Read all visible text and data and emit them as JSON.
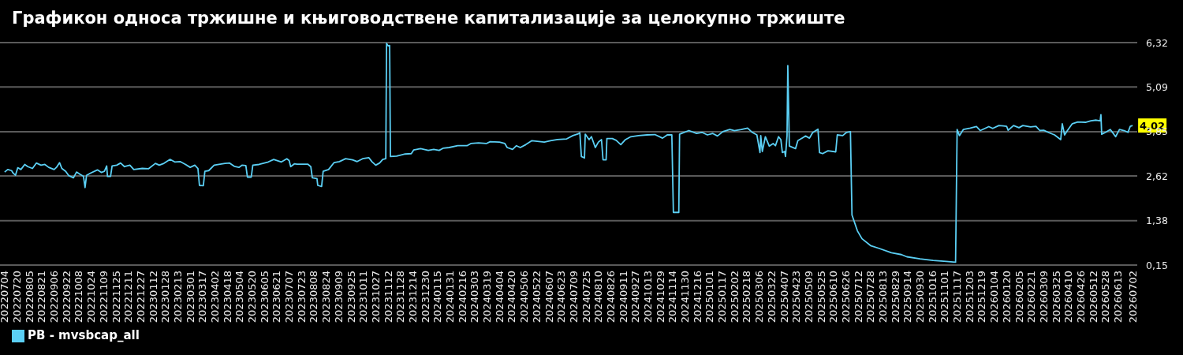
{
  "chart_data": {
    "type": "line",
    "title": "Графикон односа тржишне и књиговодствене капитализације за целокупно тржиште",
    "x": [
      "2022-07-04",
      "2022-07-08",
      "2022-07-13",
      "2022-07-15",
      "2022-07-18",
      "2022-07-21",
      "2022-07-25",
      "2022-07-30",
      "2022-08-03",
      "2022-08-09",
      "2022-08-14",
      "2022-08-20",
      "2022-08-25",
      "2022-08-30",
      "2022-09-06",
      "2022-09-09",
      "2022-09-13",
      "2022-09-16",
      "2022-09-21",
      "2022-09-25",
      "2022-10-01",
      "2022-10-05",
      "2022-10-10",
      "2022-10-14",
      "2022-10-16",
      "2022-10-18",
      "2022-10-23",
      "2022-11-01",
      "2022-11-06",
      "2022-11-10",
      "2022-11-13",
      "2022-11-14",
      "2022-11-18",
      "2022-11-20",
      "2022-11-26",
      "2022-12-01",
      "2022-12-06",
      "2022-12-13",
      "2022-12-18",
      "2022-12-29",
      "2023-01-06",
      "2023-01-15",
      "2023-01-20",
      "2023-01-26",
      "2023-02-03",
      "2023-02-09",
      "2023-02-16",
      "2023-02-23",
      "2023-03-01",
      "2023-03-07",
      "2023-03-11",
      "2023-03-13",
      "2023-03-18",
      "2023-03-20",
      "2023-03-25",
      "2023-04-01",
      "2023-04-15",
      "2023-04-21",
      "2023-04-27",
      "2023-05-03",
      "2023-05-07",
      "2023-05-12",
      "2023-05-14",
      "2023-05-19",
      "2023-05-21",
      "2023-05-29",
      "2023-06-03",
      "2023-06-10",
      "2023-06-17",
      "2023-06-27",
      "2023-07-04",
      "2023-07-07",
      "2023-07-09",
      "2023-07-14",
      "2023-07-17",
      "2023-07-31",
      "2023-08-04",
      "2023-08-06",
      "2023-08-12",
      "2023-08-13",
      "2023-08-18",
      "2023-08-20",
      "2023-08-27",
      "2023-09-03",
      "2023-09-10",
      "2023-09-18",
      "2023-09-27",
      "2023-10-03",
      "2023-10-10",
      "2023-10-18",
      "2023-10-22",
      "2023-10-27",
      "2023-11-01",
      "2023-11-05",
      "2023-11-09",
      "2023-11-10",
      "2023-11-12",
      "2023-11-14",
      "2023-11-15",
      "2023-11-23",
      "2023-12-04",
      "2023-12-12",
      "2023-12-15",
      "2023-12-24",
      "2024-01-03",
      "2024-01-10",
      "2024-01-17",
      "2024-01-22",
      "2024-01-30",
      "2024-02-10",
      "2024-02-22",
      "2024-02-27",
      "2024-03-08",
      "2024-03-18",
      "2024-03-23",
      "2024-04-04",
      "2024-04-11",
      "2024-04-14",
      "2024-04-21",
      "2024-04-26",
      "2024-05-01",
      "2024-05-08",
      "2024-05-16",
      "2024-06-01",
      "2024-06-09",
      "2024-06-18",
      "2024-06-30",
      "2024-07-08",
      "2024-07-15",
      "2024-07-17",
      "2024-07-19",
      "2024-07-23",
      "2024-07-24",
      "2024-07-29",
      "2024-08-01",
      "2024-08-06",
      "2024-08-10",
      "2024-08-14",
      "2024-08-16",
      "2024-08-20",
      "2024-08-21",
      "2024-08-28",
      "2024-09-02",
      "2024-09-08",
      "2024-09-14",
      "2024-09-21",
      "2024-10-01",
      "2024-10-12",
      "2024-10-22",
      "2024-11-01",
      "2024-11-07",
      "2024-11-13",
      "2024-11-15",
      "2024-11-22",
      "2024-11-23",
      "2024-12-05",
      "2024-12-15",
      "2024-12-22",
      "2024-12-29",
      "2025-01-05",
      "2025-01-11",
      "2025-01-18",
      "2025-01-27",
      "2025-02-02",
      "2025-02-11",
      "2025-02-19",
      "2025-02-25",
      "2025-03-03",
      "2025-03-07",
      "2025-03-08",
      "2025-03-10",
      "2025-03-14",
      "2025-03-19",
      "2025-03-24",
      "2025-03-27",
      "2025-03-31",
      "2025-04-03",
      "2025-04-05",
      "2025-04-08",
      "2025-04-09",
      "2025-04-11",
      "2025-04-12",
      "2025-04-14",
      "2025-04-22",
      "2025-04-25",
      "2025-05-05",
      "2025-05-10",
      "2025-05-14",
      "2025-05-21",
      "2025-05-23",
      "2025-05-27",
      "2025-06-03",
      "2025-06-13",
      "2025-06-15",
      "2025-06-22",
      "2025-06-27",
      "2025-07-02",
      "2025-07-04",
      "2025-07-11",
      "2025-07-17",
      "2025-07-28",
      "2025-08-07",
      "2025-08-24",
      "2025-09-06",
      "2025-09-13",
      "2025-09-30",
      "2025-10-17",
      "2025-11-03",
      "2025-11-15",
      "2025-11-17",
      "2025-11-20",
      "2025-11-25",
      "2025-12-04",
      "2025-12-12",
      "2025-12-17",
      "2025-12-28",
      "2026-01-02",
      "2026-01-10",
      "2026-01-20",
      "2026-01-22",
      "2026-01-29",
      "2026-02-05",
      "2026-02-10",
      "2026-02-20",
      "2026-02-27",
      "2026-03-04",
      "2026-03-09",
      "2026-03-16",
      "2026-03-23",
      "2026-03-26",
      "2026-03-31",
      "2026-04-02",
      "2026-04-05",
      "2026-04-09",
      "2026-04-15",
      "2026-04-22",
      "2026-05-02",
      "2026-05-09",
      "2026-05-16",
      "2026-05-21",
      "2026-05-22",
      "2026-05-23",
      "2026-05-28",
      "2026-06-03",
      "2026-06-07",
      "2026-06-10",
      "2026-06-15",
      "2026-06-21",
      "2026-06-26",
      "2026-06-29",
      "2026-07-02"
    ],
    "series": [
      {
        "name": "PB - mvsbcap_all",
        "color": "#5bcff4",
        "values": [
          2.73,
          2.8,
          2.77,
          2.7,
          2.64,
          2.85,
          2.8,
          2.94,
          2.88,
          2.83,
          2.98,
          2.92,
          2.94,
          2.86,
          2.8,
          2.86,
          2.99,
          2.83,
          2.75,
          2.63,
          2.57,
          2.73,
          2.66,
          2.61,
          2.3,
          2.64,
          2.7,
          2.79,
          2.72,
          2.75,
          2.9,
          2.61,
          2.61,
          2.9,
          2.92,
          2.98,
          2.88,
          2.92,
          2.8,
          2.83,
          2.82,
          2.97,
          2.92,
          2.97,
          3.08,
          3.01,
          3.02,
          2.94,
          2.86,
          2.92,
          2.83,
          2.36,
          2.35,
          2.75,
          2.77,
          2.92,
          2.97,
          2.98,
          2.89,
          2.86,
          2.92,
          2.91,
          2.59,
          2.59,
          2.92,
          2.94,
          2.97,
          3.01,
          3.08,
          3.01,
          3.1,
          3.05,
          2.88,
          2.96,
          2.95,
          2.95,
          2.88,
          2.57,
          2.55,
          2.36,
          2.33,
          2.75,
          2.8,
          2.99,
          3.02,
          3.1,
          3.07,
          3.02,
          3.1,
          3.13,
          3.02,
          2.92,
          2.98,
          3.08,
          3.1,
          6.3,
          6.23,
          6.24,
          3.16,
          3.17,
          3.23,
          3.24,
          3.34,
          3.38,
          3.33,
          3.36,
          3.33,
          3.39,
          3.41,
          3.46,
          3.46,
          3.52,
          3.54,
          3.52,
          3.57,
          3.56,
          3.52,
          3.41,
          3.36,
          3.46,
          3.41,
          3.49,
          3.6,
          3.56,
          3.6,
          3.63,
          3.65,
          3.74,
          3.79,
          3.82,
          3.16,
          3.12,
          3.78,
          3.63,
          3.71,
          3.41,
          3.56,
          3.63,
          3.07,
          3.07,
          3.66,
          3.66,
          3.61,
          3.49,
          3.63,
          3.71,
          3.74,
          3.76,
          3.77,
          3.67,
          3.76,
          3.76,
          1.61,
          1.61,
          3.78,
          3.88,
          3.8,
          3.83,
          3.76,
          3.8,
          3.73,
          3.85,
          3.91,
          3.88,
          3.91,
          3.95,
          3.83,
          3.76,
          3.27,
          3.74,
          3.3,
          3.71,
          3.45,
          3.52,
          3.46,
          3.71,
          3.63,
          3.27,
          3.3,
          3.16,
          3.74,
          5.68,
          3.45,
          3.38,
          3.6,
          3.73,
          3.67,
          3.82,
          3.92,
          3.27,
          3.24,
          3.32,
          3.29,
          3.76,
          3.74,
          3.83,
          3.85,
          1.54,
          1.1,
          0.88,
          0.69,
          0.62,
          0.49,
          0.44,
          0.38,
          0.32,
          0.28,
          0.25,
          0.23,
          3.91,
          3.74,
          3.91,
          3.95,
          3.99,
          3.88,
          3.99,
          3.94,
          4.02,
          4.0,
          3.89,
          4.02,
          3.96,
          4.02,
          3.98,
          4.0,
          3.88,
          3.89,
          3.82,
          3.76,
          3.71,
          3.63,
          4.07,
          3.76,
          3.89,
          4.07,
          4.12,
          4.11,
          4.15,
          4.17,
          4.15,
          4.32,
          3.78,
          3.83,
          3.91,
          3.8,
          3.71,
          3.91,
          3.88,
          3.83,
          4.0,
          4.02
        ]
      }
    ],
    "xlim": [
      "2022-06-28",
      "2026-07-08"
    ],
    "xticks": [
      {
        "value": "2022-07-04",
        "label": "20220704"
      },
      {
        "value": "2022-07-20",
        "label": "20220720"
      },
      {
        "value": "2022-08-05",
        "label": "20220805"
      },
      {
        "value": "2022-08-21",
        "label": "20220821"
      },
      {
        "value": "2022-09-06",
        "label": "20220906"
      },
      {
        "value": "2022-09-22",
        "label": "20220922"
      },
      {
        "value": "2022-10-08",
        "label": "20221008"
      },
      {
        "value": "2022-10-24",
        "label": "20221024"
      },
      {
        "value": "2022-11-09",
        "label": "20221109"
      },
      {
        "value": "2022-11-25",
        "label": "20221125"
      },
      {
        "value": "2022-12-11",
        "label": "20221211"
      },
      {
        "value": "2022-12-27",
        "label": "20221227"
      },
      {
        "value": "2023-01-12",
        "label": "20230112"
      },
      {
        "value": "2023-01-28",
        "label": "20230128"
      },
      {
        "value": "2023-02-13",
        "label": "20230213"
      },
      {
        "value": "2023-03-01",
        "label": "20230301"
      },
      {
        "value": "2023-03-17",
        "label": "20230317"
      },
      {
        "value": "2023-04-02",
        "label": "20230402"
      },
      {
        "value": "2023-04-18",
        "label": "20230418"
      },
      {
        "value": "2023-05-04",
        "label": "20230504"
      },
      {
        "value": "2023-05-20",
        "label": "20230520"
      },
      {
        "value": "2023-06-05",
        "label": "20230605"
      },
      {
        "value": "2023-06-21",
        "label": "20230621"
      },
      {
        "value": "2023-07-07",
        "label": "20230707"
      },
      {
        "value": "2023-07-23",
        "label": "20230723"
      },
      {
        "value": "2023-08-08",
        "label": "20230808"
      },
      {
        "value": "2023-08-24",
        "label": "20230824"
      },
      {
        "value": "2023-09-09",
        "label": "20230909"
      },
      {
        "value": "2023-09-25",
        "label": "20230925"
      },
      {
        "value": "2023-10-11",
        "label": "20231011"
      },
      {
        "value": "2023-10-27",
        "label": "20231027"
      },
      {
        "value": "2023-11-12",
        "label": "20231112"
      },
      {
        "value": "2023-11-28",
        "label": "20231128"
      },
      {
        "value": "2023-12-14",
        "label": "20231214"
      },
      {
        "value": "2023-12-30",
        "label": "20231230"
      },
      {
        "value": "2024-01-15",
        "label": "20240115"
      },
      {
        "value": "2024-01-31",
        "label": "20240131"
      },
      {
        "value": "2024-02-16",
        "label": "20240216"
      },
      {
        "value": "2024-03-03",
        "label": "20240303"
      },
      {
        "value": "2024-03-19",
        "label": "20240319"
      },
      {
        "value": "2024-04-04",
        "label": "20240404"
      },
      {
        "value": "2024-04-20",
        "label": "20240420"
      },
      {
        "value": "2024-05-06",
        "label": "20240506"
      },
      {
        "value": "2024-05-22",
        "label": "20240522"
      },
      {
        "value": "2024-06-07",
        "label": "20240607"
      },
      {
        "value": "2024-06-23",
        "label": "20240623"
      },
      {
        "value": "2024-07-09",
        "label": "20240709"
      },
      {
        "value": "2024-07-25",
        "label": "20240725"
      },
      {
        "value": "2024-08-10",
        "label": "20240810"
      },
      {
        "value": "2024-08-26",
        "label": "20240826"
      },
      {
        "value": "2024-09-11",
        "label": "20240911"
      },
      {
        "value": "2024-09-27",
        "label": "20240927"
      },
      {
        "value": "2024-10-13",
        "label": "20241013"
      },
      {
        "value": "2024-10-29",
        "label": "20241029"
      },
      {
        "value": "2024-11-14",
        "label": "20241114"
      },
      {
        "value": "2024-11-30",
        "label": "20241130"
      },
      {
        "value": "2024-12-16",
        "label": "20241216"
      },
      {
        "value": "2025-01-01",
        "label": "20250101"
      },
      {
        "value": "2025-01-17",
        "label": "20250117"
      },
      {
        "value": "2025-02-02",
        "label": "20250202"
      },
      {
        "value": "2025-02-18",
        "label": "20250218"
      },
      {
        "value": "2025-03-06",
        "label": "20250306"
      },
      {
        "value": "2025-03-22",
        "label": "20250322"
      },
      {
        "value": "2025-04-07",
        "label": "20250407"
      },
      {
        "value": "2025-04-23",
        "label": "20250423"
      },
      {
        "value": "2025-05-09",
        "label": "20250509"
      },
      {
        "value": "2025-05-25",
        "label": "20250525"
      },
      {
        "value": "2025-06-10",
        "label": "20250610"
      },
      {
        "value": "2025-06-26",
        "label": "20250626"
      },
      {
        "value": "2025-07-12",
        "label": "20250712"
      },
      {
        "value": "2025-07-28",
        "label": "20250728"
      },
      {
        "value": "2025-08-13",
        "label": "20250813"
      },
      {
        "value": "2025-08-29",
        "label": "20250829"
      },
      {
        "value": "2025-09-14",
        "label": "20250914"
      },
      {
        "value": "2025-09-30",
        "label": "20250930"
      },
      {
        "value": "2025-10-16",
        "label": "20251016"
      },
      {
        "value": "2025-11-01",
        "label": "20251101"
      },
      {
        "value": "2025-11-17",
        "label": "20251117"
      },
      {
        "value": "2025-12-03",
        "label": "20251203"
      },
      {
        "value": "2025-12-19",
        "label": "20251219"
      },
      {
        "value": "2026-01-04",
        "label": "20260104"
      },
      {
        "value": "2026-01-20",
        "label": "20260120"
      },
      {
        "value": "2026-02-05",
        "label": "20260205"
      },
      {
        "value": "2026-02-21",
        "label": "20260221"
      },
      {
        "value": "2026-03-09",
        "label": "20260309"
      },
      {
        "value": "2026-03-25",
        "label": "20260325"
      },
      {
        "value": "2026-04-10",
        "label": "20260410"
      },
      {
        "value": "2026-04-26",
        "label": "20260426"
      },
      {
        "value": "2026-05-12",
        "label": "20260512"
      },
      {
        "value": "2026-05-28",
        "label": "20260528"
      },
      {
        "value": "2026-06-13",
        "label": "20260613"
      },
      {
        "value": "2026-07-02",
        "label": "20260702"
      }
    ],
    "ylim": [
      0.15,
      6.32
    ],
    "yticks": [
      {
        "value": 0.15,
        "label": "0,15"
      },
      {
        "value": 1.38,
        "label": "1,38"
      },
      {
        "value": 2.62,
        "label": "2,62"
      },
      {
        "value": 3.85,
        "label": "3,85"
      },
      {
        "value": 5.09,
        "label": "5,09"
      },
      {
        "value": 6.32,
        "label": "6,32"
      }
    ],
    "annotations": [
      {
        "text": "4,02",
        "x": "2026-07-02",
        "y": 4.02
      }
    ],
    "grid": "y",
    "legend": "bottom left"
  }
}
